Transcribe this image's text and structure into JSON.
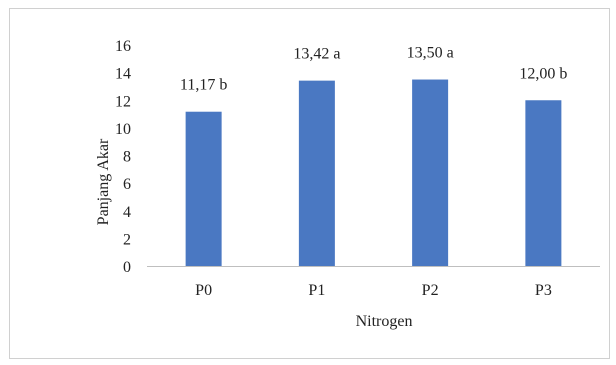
{
  "chart_data": {
    "type": "bar",
    "title": "",
    "xlabel": "Nitrogen",
    "ylabel": "Panjang Akar",
    "categories": [
      "P0",
      "P1",
      "P2",
      "P3"
    ],
    "values": [
      11.17,
      13.42,
      13.5,
      12.0
    ],
    "data_labels": [
      "11,17 b",
      "13,42 a",
      "13,50 a",
      "12,00 b"
    ],
    "ylim": [
      0,
      16
    ],
    "yticks": [
      0,
      2,
      4,
      6,
      8,
      10,
      12,
      14,
      16
    ],
    "ytick_labels": [
      "0",
      "2",
      "4",
      "6",
      "8",
      "10",
      "12",
      "14",
      "16"
    ],
    "grid": false,
    "legend": "none",
    "bar_color": "#4a78c2",
    "axis_color": "#bfbfbf"
  }
}
